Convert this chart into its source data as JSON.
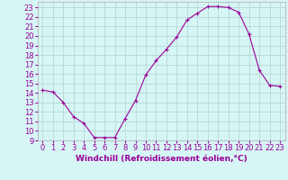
{
  "x": [
    0,
    1,
    2,
    3,
    4,
    5,
    6,
    7,
    8,
    9,
    10,
    11,
    12,
    13,
    14,
    15,
    16,
    17,
    18,
    19,
    20,
    21,
    22,
    23
  ],
  "y": [
    14.3,
    14.1,
    13.0,
    11.5,
    10.8,
    9.3,
    9.3,
    9.3,
    11.3,
    13.2,
    15.9,
    17.4,
    18.6,
    19.9,
    21.7,
    22.4,
    23.1,
    23.1,
    23.0,
    22.5,
    20.2,
    16.4,
    14.8,
    14.7
  ],
  "line_color": "#990099",
  "marker": "+",
  "bg_color": "#d6f5f5",
  "grid_color": "#b8d8d8",
  "xlabel": "Windchill (Refroidissement éolien,°C)",
  "ylabel_ticks": [
    9,
    10,
    11,
    12,
    13,
    14,
    15,
    16,
    17,
    18,
    19,
    20,
    21,
    22,
    23
  ],
  "xlim": [
    -0.5,
    23.5
  ],
  "ylim": [
    9,
    23.6
  ],
  "xlabel_fontsize": 6.5,
  "tick_fontsize": 6.0,
  "tick_color": "#990099"
}
